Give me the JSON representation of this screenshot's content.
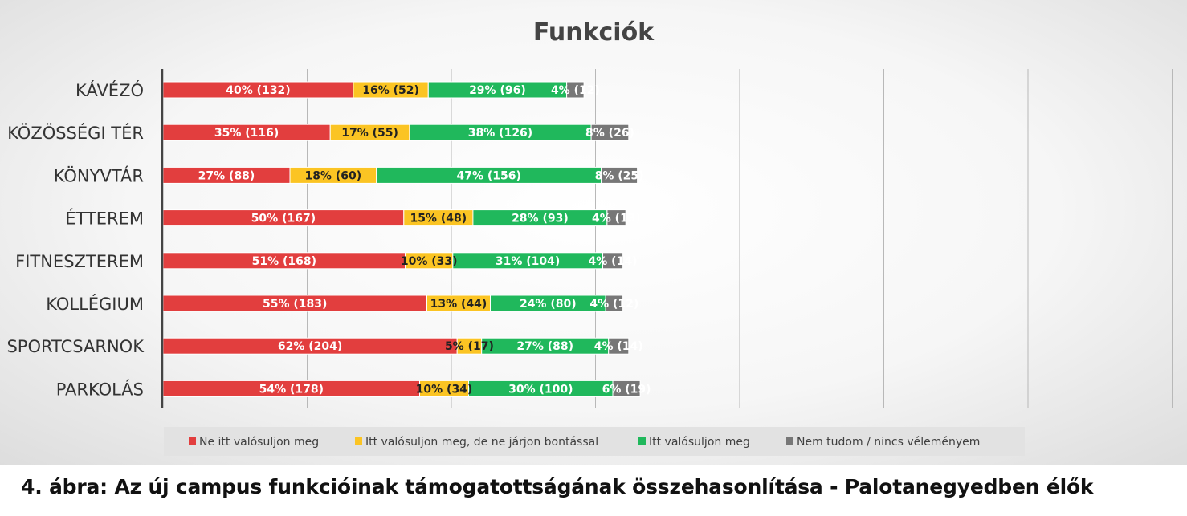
{
  "caption": "4. ábra: Az új campus funkcióinak támogatottságának összehasonlítása - Palotanegyedben élők",
  "chart_data": {
    "type": "bar",
    "orientation": "horizontal",
    "stacked": true,
    "title": "Funkciók",
    "legend_position": "bottom",
    "grid": true,
    "categories": [
      "KÁVÉZÓ",
      "KÖZÖSSÉGI TÉR",
      "KÖNYVTÁR",
      "ÉTTEREM",
      "FITNESZTEREM",
      "KOLLÉGIUM",
      "SPORTCSARNOK",
      "PARKOLÁS"
    ],
    "series": [
      {
        "name": "Ne itt valósuljon meg",
        "color": "#e23e3e",
        "values": [
          132,
          116,
          88,
          167,
          168,
          183,
          204,
          178
        ],
        "labels": [
          "40% (132)",
          "35% (116)",
          "27% (88)",
          "50% (167)",
          "51% (168)",
          "55% (183)",
          "62% (204)",
          "54% (178)"
        ]
      },
      {
        "name": "Itt valósuljon meg, de ne járjon bontással",
        "color": "#fbc423",
        "values": [
          52,
          55,
          60,
          48,
          33,
          44,
          17,
          34
        ],
        "labels": [
          "16% (52)",
          "17% (55)",
          "18% (60)",
          "15% (48)",
          "10% (33)",
          "13% (44)",
          "5% (17)",
          "10% (34)"
        ]
      },
      {
        "name": "Itt valósuljon meg",
        "color": "#20b85c",
        "values": [
          96,
          126,
          156,
          93,
          104,
          80,
          88,
          100
        ],
        "labels": [
          "29% (96)",
          "38% (126)",
          "47% (156)",
          "28% (93)",
          "31% (104)",
          "24% (80)",
          "27%  (88)",
          "30% (100)"
        ]
      },
      {
        "name": "Nem tudom / nincs véleményem",
        "color": "#777777",
        "values": [
          12,
          26,
          25,
          13,
          14,
          12,
          14,
          19
        ],
        "labels": [
          "4% (12)",
          "8% (26)",
          "8% (25)",
          "4% (13)",
          "4% (14)",
          "4% (12)",
          "4% (14)",
          "6% (19)"
        ]
      }
    ]
  }
}
